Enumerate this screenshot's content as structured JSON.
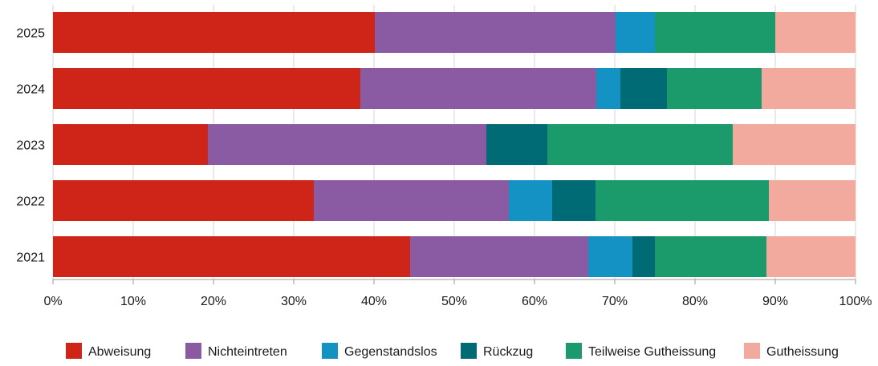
{
  "chart_data": {
    "type": "bar",
    "orientation": "horizontal",
    "stacked": true,
    "categories": [
      "2025",
      "2024",
      "2023",
      "2022",
      "2021"
    ],
    "series": [
      {
        "name": "Abweisung",
        "color": "#cf2518",
        "values": [
          40.1,
          38.3,
          19.3,
          32.5,
          44.5
        ]
      },
      {
        "name": "Nichteintreten",
        "color": "#8a5aa3",
        "values": [
          30.0,
          29.4,
          34.7,
          24.3,
          22.2
        ]
      },
      {
        "name": "Gegenstandslos",
        "color": "#1492c4",
        "values": [
          4.9,
          3.0,
          0.0,
          5.4,
          5.5
        ]
      },
      {
        "name": "Rückzug",
        "color": "#006b75",
        "values": [
          0.0,
          5.8,
          7.6,
          5.4,
          2.8
        ]
      },
      {
        "name": "Teilweise Gutheissung",
        "color": "#1b9b6c",
        "values": [
          15.0,
          11.8,
          23.1,
          21.6,
          13.9
        ]
      },
      {
        "name": "Gutheissung",
        "color": "#f2aa9e",
        "values": [
          10.0,
          11.7,
          15.3,
          10.8,
          11.1
        ]
      }
    ],
    "xlim": [
      0,
      100
    ],
    "xticks": [
      "0%",
      "10%",
      "20%",
      "30%",
      "40%",
      "50%",
      "60%",
      "70%",
      "80%",
      "90%",
      "100%"
    ],
    "grid": true,
    "legend_position": "bottom"
  }
}
